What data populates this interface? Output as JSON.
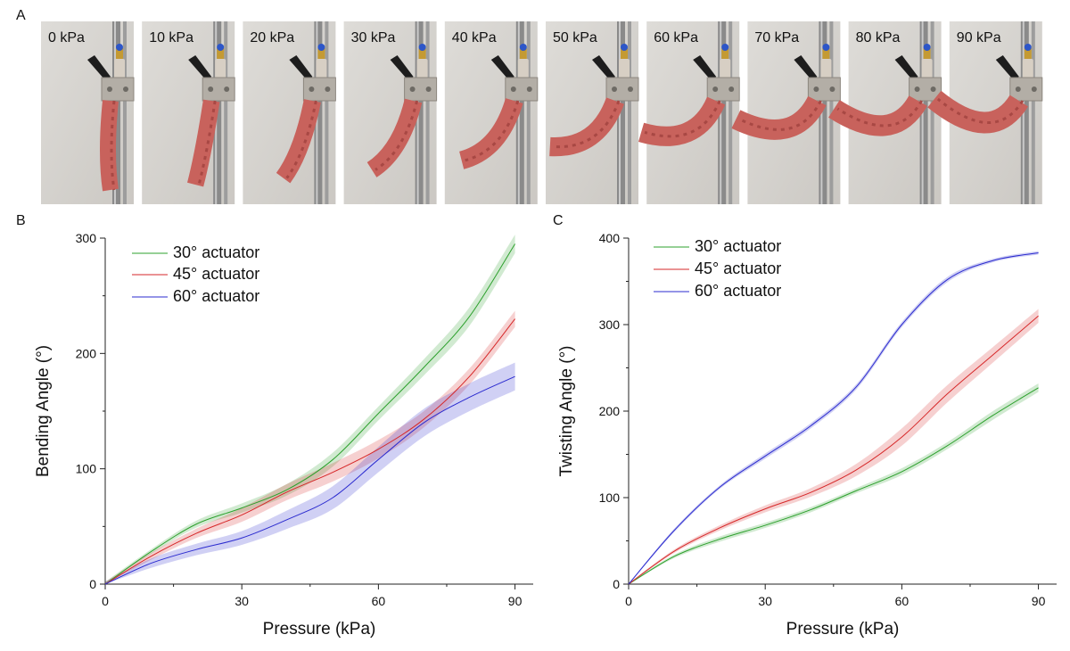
{
  "panel_a": {
    "letter": "A",
    "photos": [
      {
        "label": "0 kPa",
        "bend": 0
      },
      {
        "label": "10 kPa",
        "bend": 0.12
      },
      {
        "label": "20 kPa",
        "bend": 0.22
      },
      {
        "label": "30 kPa",
        "bend": 0.32
      },
      {
        "label": "40 kPa",
        "bend": 0.42
      },
      {
        "label": "50 kPa",
        "bend": 0.55
      },
      {
        "label": "60 kPa",
        "bend": 0.68
      },
      {
        "label": "70 kPa",
        "bend": 0.8
      },
      {
        "label": "80 kPa",
        "bend": 0.9
      },
      {
        "label": "90 kPa",
        "bend": 1.0
      }
    ]
  },
  "colors": {
    "green": "#2ca02c",
    "red": "#d62728",
    "blue": "#2b2bcf"
  },
  "chart_data": [
    {
      "id": "B",
      "letter": "B",
      "type": "line",
      "xlabel": "Pressure (kPa)",
      "ylabel": "Bending Angle (°)",
      "xlim": [
        0,
        94
      ],
      "ylim": [
        0,
        300
      ],
      "xticks": [
        0,
        30,
        60,
        90
      ],
      "yticks": [
        0,
        100,
        200,
        300
      ],
      "legend_position": "top-left",
      "series": [
        {
          "name": "30° actuator",
          "color": "green",
          "x": [
            0,
            10,
            20,
            30,
            40,
            50,
            60,
            70,
            80,
            90
          ],
          "y": [
            0,
            28,
            52,
            66,
            82,
            108,
            148,
            188,
            232,
            295
          ],
          "band": [
            2,
            2,
            3,
            4,
            5,
            6,
            6,
            7,
            8,
            8
          ]
        },
        {
          "name": "45° actuator",
          "color": "red",
          "x": [
            0,
            10,
            20,
            30,
            40,
            50,
            60,
            70,
            80,
            90
          ],
          "y": [
            0,
            24,
            44,
            60,
            80,
            97,
            117,
            143,
            180,
            230
          ],
          "band": [
            2,
            3,
            4,
            6,
            7,
            8,
            8,
            7,
            7,
            7
          ]
        },
        {
          "name": "60° actuator",
          "color": "blue",
          "x": [
            0,
            10,
            20,
            30,
            40,
            50,
            60,
            70,
            80,
            90
          ],
          "y": [
            0,
            18,
            30,
            40,
            56,
            75,
            108,
            140,
            162,
            180
          ],
          "band": [
            2,
            4,
            5,
            6,
            8,
            10,
            11,
            12,
            12,
            12
          ]
        }
      ]
    },
    {
      "id": "C",
      "letter": "C",
      "type": "line",
      "xlabel": "Pressure (kPa)",
      "ylabel": "Twisting Angle (°)",
      "xlim": [
        0,
        94
      ],
      "ylim": [
        0,
        400
      ],
      "xticks": [
        0,
        30,
        60,
        90
      ],
      "yticks": [
        0,
        100,
        200,
        300,
        400
      ],
      "legend_position": "top-left",
      "series": [
        {
          "name": "30° actuator",
          "color": "green",
          "x": [
            0,
            10,
            20,
            30,
            40,
            50,
            60,
            70,
            80,
            90
          ],
          "y": [
            0,
            32,
            52,
            68,
            86,
            108,
            130,
            160,
            195,
            227
          ],
          "band": [
            1,
            2,
            3,
            3,
            3,
            3,
            4,
            4,
            5,
            5
          ]
        },
        {
          "name": "45° actuator",
          "color": "red",
          "x": [
            0,
            10,
            20,
            30,
            40,
            50,
            60,
            70,
            80,
            90
          ],
          "y": [
            0,
            38,
            65,
            87,
            106,
            132,
            170,
            220,
            265,
            310
          ],
          "band": [
            1,
            2,
            3,
            4,
            5,
            7,
            10,
            10,
            9,
            8
          ]
        },
        {
          "name": "60° actuator",
          "color": "blue",
          "x": [
            0,
            10,
            20,
            30,
            40,
            50,
            60,
            70,
            80,
            90
          ],
          "y": [
            0,
            62,
            112,
            148,
            183,
            228,
            300,
            352,
            374,
            383
          ],
          "band": [
            1,
            2,
            2,
            3,
            3,
            3,
            3,
            3,
            2,
            2
          ]
        }
      ]
    }
  ]
}
